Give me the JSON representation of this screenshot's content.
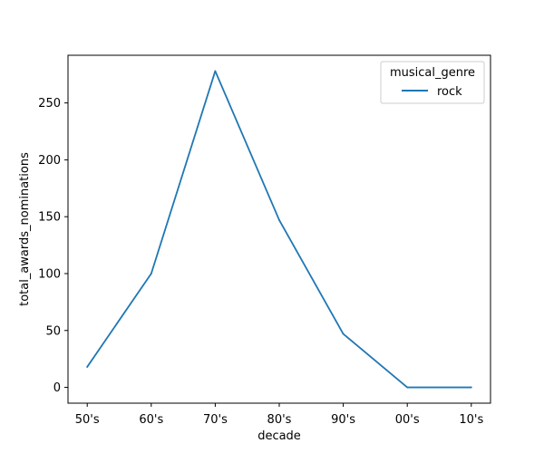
{
  "chart_data": {
    "type": "line",
    "xlabel": "decade",
    "ylabel": "total_awards_nominations",
    "categories": [
      "50's",
      "60's",
      "70's",
      "80's",
      "90's",
      "00's",
      "10's"
    ],
    "series": [
      {
        "name": "rock",
        "values": [
          18,
          100,
          278,
          147,
          47,
          0,
          0
        ],
        "color": "#1f77b4"
      }
    ],
    "ylim": [
      -13.9,
      291.9
    ],
    "yticks": [
      0,
      50,
      100,
      150,
      200,
      250
    ],
    "grid": false,
    "legend": {
      "title": "musical_genre",
      "placement": "top-right"
    }
  }
}
